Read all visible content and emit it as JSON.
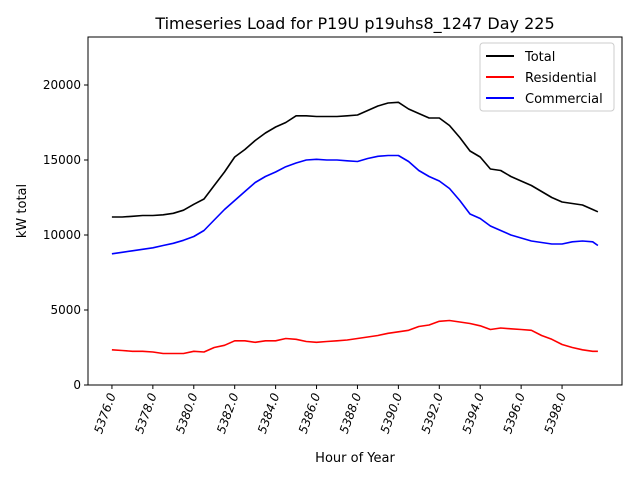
{
  "chart_data": {
    "type": "line",
    "title": "Timeseries Load for P19U p19uhs8_1247  Day 225",
    "xlabel": "Hour of Year",
    "ylabel": "kW total",
    "xlim": [
      5374.83,
      5400.93
    ],
    "ylim": [
      0,
      23200
    ],
    "xticks": [
      "5376.0",
      "5378.0",
      "5380.0",
      "5382.0",
      "5384.0",
      "5386.0",
      "5388.0",
      "5390.0",
      "5392.0",
      "5394.0",
      "5396.0",
      "5398.0"
    ],
    "xtick_values": [
      5376,
      5378,
      5380,
      5382,
      5384,
      5386,
      5388,
      5390,
      5392,
      5394,
      5396,
      5398
    ],
    "yticks": [
      "0",
      "5000",
      "10000",
      "15000",
      "20000"
    ],
    "ytick_values": [
      0,
      5000,
      10000,
      15000,
      20000
    ],
    "grid": false,
    "legend_position": "top-right",
    "x": [
      5376,
      5376.5,
      5377,
      5377.5,
      5378,
      5378.5,
      5379,
      5379.5,
      5380,
      5380.5,
      5381,
      5381.5,
      5382,
      5382.5,
      5383,
      5383.5,
      5384,
      5384.5,
      5385,
      5385.5,
      5386,
      5386.5,
      5387,
      5387.5,
      5388,
      5388.5,
      5389,
      5389.5,
      5390,
      5390.5,
      5391,
      5391.5,
      5392,
      5392.5,
      5393,
      5393.5,
      5394,
      5394.5,
      5395,
      5395.5,
      5396,
      5396.5,
      5397,
      5397.5,
      5398,
      5398.5,
      5399,
      5399.5,
      5399.75
    ],
    "series": [
      {
        "name": "Total",
        "color": "#000000",
        "values": [
          11200,
          11200,
          11250,
          11300,
          11300,
          11350,
          11450,
          11650,
          12050,
          12400,
          13300,
          14200,
          15200,
          15700,
          16300,
          16800,
          17200,
          17500,
          17950,
          17950,
          17900,
          17900,
          17900,
          17950,
          18000,
          18300,
          18600,
          18800,
          18850,
          18400,
          18100,
          17800,
          17800,
          17300,
          16500,
          15600,
          15200,
          14400,
          14300,
          13900,
          13600,
          13300,
          12900,
          12500,
          12200,
          12100,
          12000,
          11700,
          11550
        ]
      },
      {
        "name": "Residential",
        "color": "#ff0000",
        "values": [
          2350,
          2300,
          2250,
          2250,
          2200,
          2100,
          2100,
          2100,
          2250,
          2200,
          2500,
          2650,
          2950,
          2950,
          2850,
          2950,
          2950,
          3100,
          3050,
          2900,
          2850,
          2900,
          2950,
          3000,
          3100,
          3200,
          3300,
          3450,
          3550,
          3650,
          3900,
          4000,
          4250,
          4300,
          4200,
          4100,
          3950,
          3700,
          3800,
          3750,
          3700,
          3650,
          3300,
          3050,
          2700,
          2500,
          2350,
          2250,
          2250
        ]
      },
      {
        "name": "Commercial",
        "color": "#0000ff",
        "values": [
          8750,
          8850,
          8950,
          9050,
          9150,
          9300,
          9450,
          9650,
          9900,
          10300,
          11000,
          11700,
          12300,
          12900,
          13500,
          13900,
          14200,
          14550,
          14800,
          15000,
          15050,
          15000,
          15000,
          14950,
          14900,
          15100,
          15250,
          15300,
          15300,
          14900,
          14300,
          13900,
          13600,
          13100,
          12300,
          11400,
          11100,
          10600,
          10300,
          10000,
          9800,
          9600,
          9500,
          9400,
          9400,
          9550,
          9600,
          9550,
          9300
        ]
      }
    ]
  }
}
